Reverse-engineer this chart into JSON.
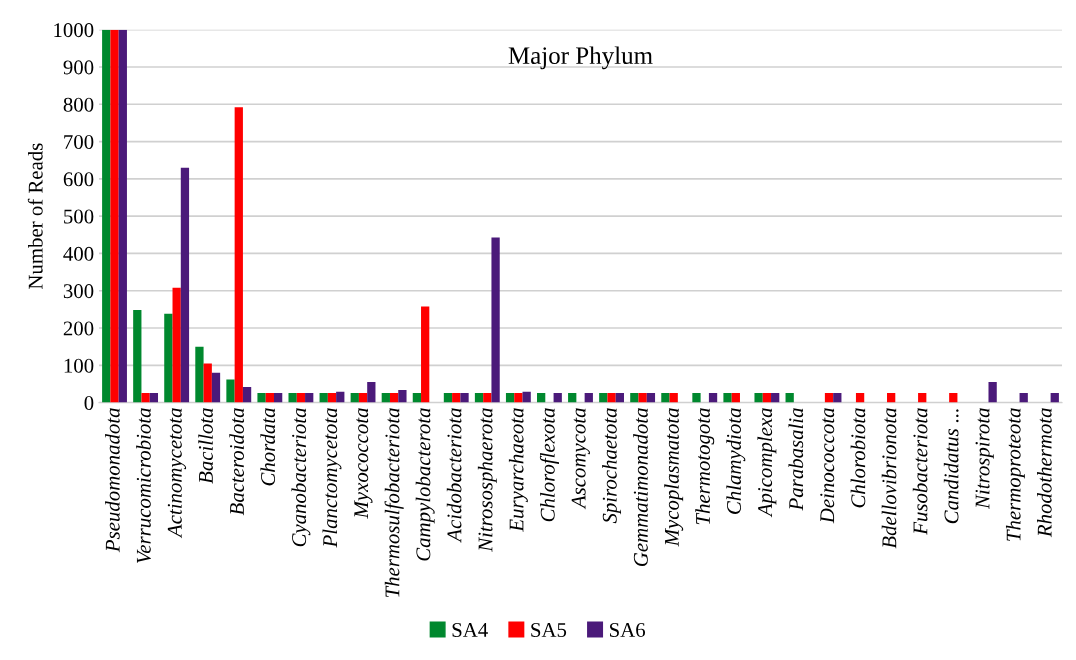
{
  "chart_data": {
    "type": "bar",
    "title": "Major Phylum",
    "ylabel": "Number of Reads",
    "categories": [
      "Pseudomonadota",
      "Verrucomicrobiota",
      "Actinomycetota",
      "Bacillota",
      "Bacteroidota",
      "Chordata",
      "Cyanobacteriota",
      "Planctomycetota",
      "Myxococcota",
      "Thermosulfobacteriota",
      "Campylobacterota",
      "Acidobacteriota",
      "Nitrososphaerota",
      "Euryarchaeota",
      "Chloroflexota",
      "Ascomycota",
      "Spirochaetota",
      "Gemmatimonadota",
      "Mycoplasmatota",
      "Thermotogota",
      "Chlamydiota",
      "Apicomplexa",
      "Parabasalia",
      "Deinococcota",
      "Chlorobiota",
      "Bdellovibrionota",
      "Fusobacteriota",
      "Candidatus ...",
      "Nitrospirota",
      "Thermoproteota",
      "Rhodothermota"
    ],
    "series": [
      {
        "name": "SA4",
        "color": "#00882e",
        "values": [
          1000,
          248,
          238,
          150,
          62,
          26,
          26,
          26,
          26,
          26,
          26,
          26,
          26,
          26,
          26,
          26,
          26,
          26,
          26,
          26,
          26,
          26,
          26,
          null,
          null,
          null,
          null,
          null,
          null,
          null,
          null
        ]
      },
      {
        "name": "SA5",
        "color": "#ff0000",
        "values": [
          1000,
          26,
          308,
          105,
          792,
          26,
          26,
          26,
          26,
          26,
          258,
          26,
          26,
          26,
          null,
          null,
          26,
          26,
          26,
          null,
          26,
          26,
          null,
          26,
          26,
          26,
          26,
          26,
          null,
          null,
          null
        ]
      },
      {
        "name": "SA6",
        "color": "#4b1a7a",
        "values": [
          1000,
          26,
          630,
          80,
          42,
          26,
          26,
          29,
          55,
          34,
          null,
          26,
          443,
          29,
          26,
          26,
          26,
          26,
          null,
          26,
          null,
          26,
          null,
          26,
          null,
          null,
          null,
          null,
          55,
          26,
          26
        ]
      }
    ],
    "ylim": [
      0,
      1000
    ],
    "yticks": [
      0,
      100,
      200,
      300,
      400,
      500,
      600,
      700,
      800,
      900,
      1000
    ],
    "grid": "y",
    "legend": "bottom"
  }
}
